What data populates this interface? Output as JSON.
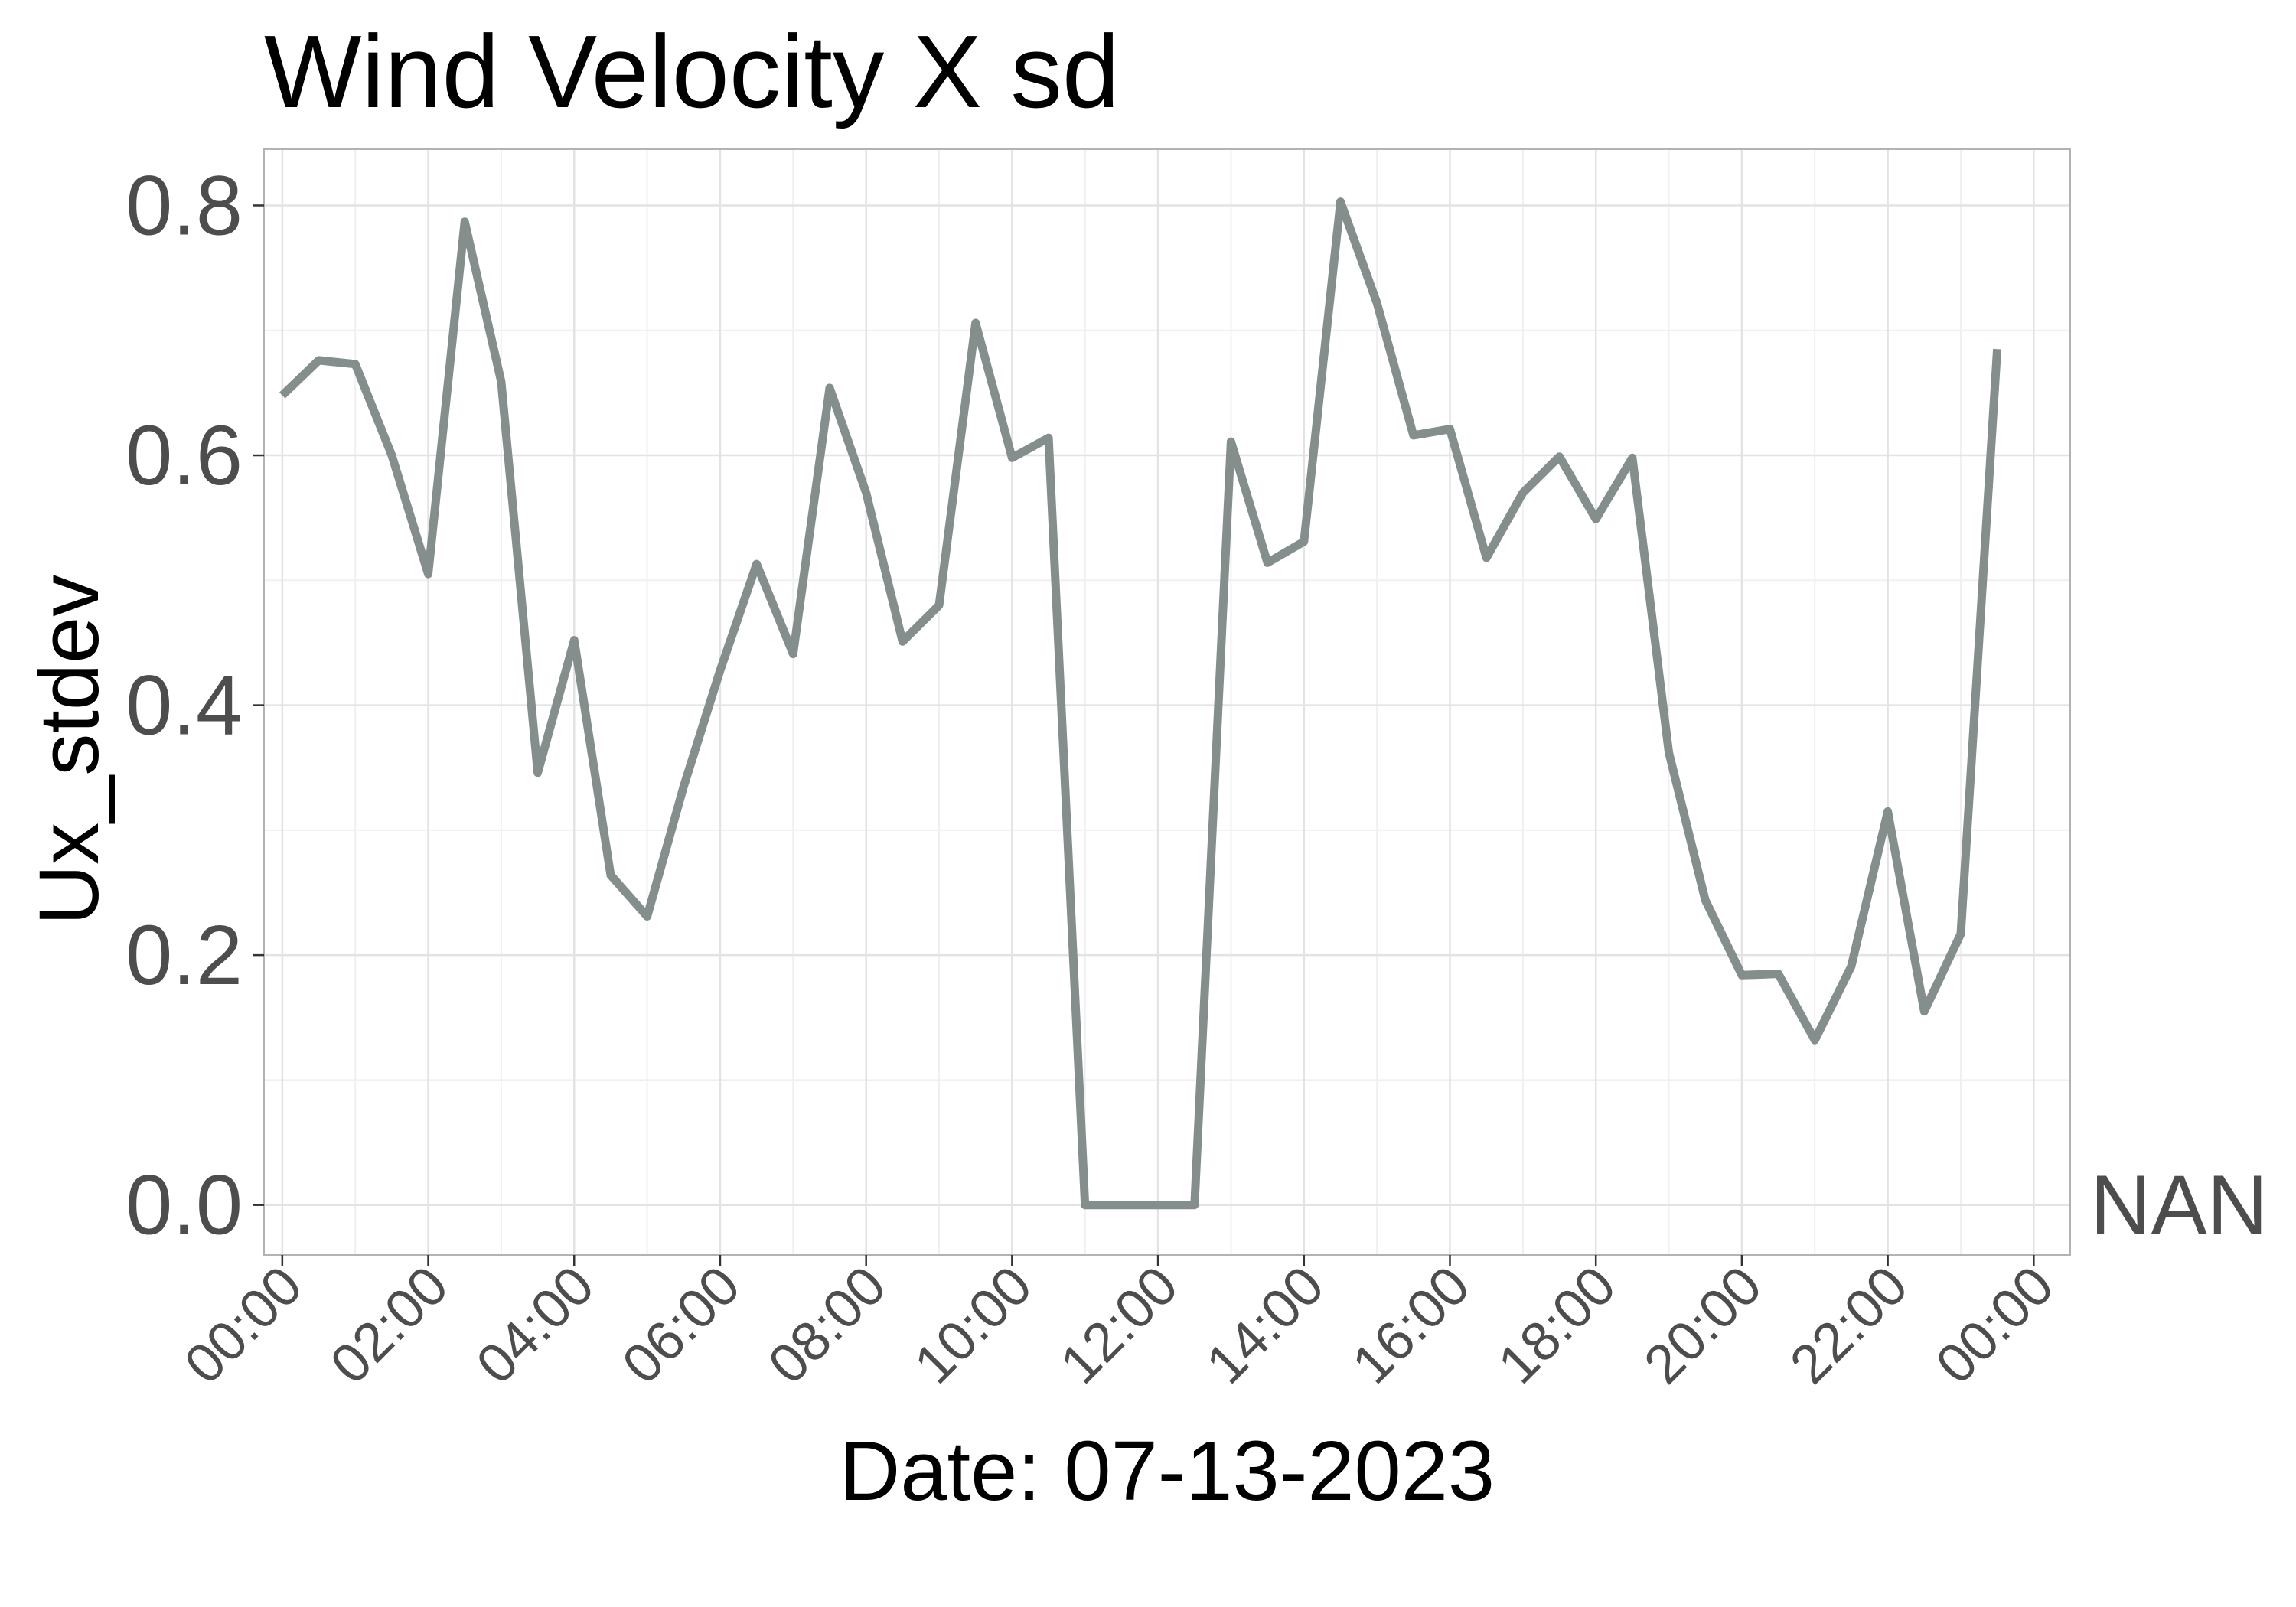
{
  "chart_data": {
    "type": "line",
    "title": "Wind Velocity X sd",
    "xlabel": "Date: 07-13-2023",
    "ylabel": "Ux_stdev",
    "x_unit": "hours",
    "xlim": [
      -0.25,
      24.5
    ],
    "ylim": [
      -0.04,
      0.845
    ],
    "ytick_values": [
      0.0,
      0.2,
      0.4,
      0.6,
      0.8
    ],
    "ytick_labels": [
      "0.0",
      "0.2",
      "0.4",
      "0.6",
      "0.8"
    ],
    "xtick_values": [
      0,
      2,
      4,
      6,
      8,
      10,
      12,
      14,
      16,
      18,
      20,
      22,
      24
    ],
    "xtick_labels": [
      "00:00",
      "02:00",
      "04:00",
      "06:00",
      "08:00",
      "10:00",
      "12:00",
      "14:00",
      "16:00",
      "18:00",
      "20:00",
      "22:00",
      "00:00"
    ],
    "nan_label": "NAN",
    "nan_value": 0.0,
    "grid": true,
    "line_color": "#848e8c",
    "series": [
      {
        "x": [
          0,
          0.5,
          1,
          1.5,
          2,
          2.5,
          3,
          3.5,
          4,
          4.5,
          5,
          5.5,
          6,
          6.5,
          7,
          7.5,
          8,
          8.5,
          9,
          9.5,
          10,
          10.5,
          11,
          11.5,
          12,
          12.5,
          13,
          13.5,
          14,
          14.5,
          15,
          15.5,
          16,
          16.5,
          17,
          17.5,
          18,
          18.5,
          19,
          19.5,
          20,
          20.5,
          21,
          21.5,
          22,
          22.5,
          23,
          23.5
        ],
        "values": [
          0.648,
          0.676,
          0.673,
          0.6,
          0.505,
          0.787,
          0.659,
          0.346,
          0.452,
          0.264,
          0.231,
          0.335,
          0.428,
          0.513,
          0.441,
          0.654,
          0.57,
          0.451,
          0.48,
          0.706,
          0.598,
          0.614,
          0.0,
          0.0,
          0.0,
          0.0,
          0.611,
          0.514,
          0.531,
          0.803,
          0.722,
          0.616,
          0.621,
          0.518,
          0.57,
          0.599,
          0.549,
          0.598,
          0.362,
          0.244,
          0.184,
          0.185,
          0.132,
          0.191,
          0.315,
          0.155,
          0.217,
          0.685
        ]
      }
    ]
  }
}
